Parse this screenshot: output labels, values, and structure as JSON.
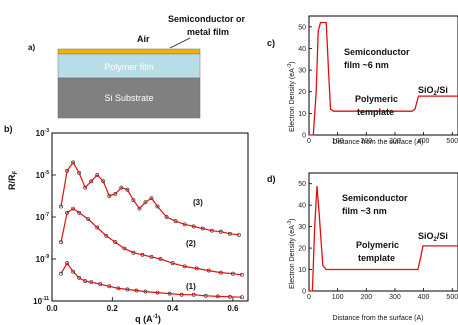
{
  "panel_a": {
    "letter": "a)",
    "air_label": "Air",
    "annotation_line1": "Semiconductor or",
    "annotation_line2": "metal film",
    "polymer_label": "Polymer film",
    "substrate_label": "Si Substrate",
    "colors": {
      "film": "#f0b400",
      "polymer": "#b7dde6",
      "substrate": "#808080"
    }
  },
  "panel_b": {
    "letter": "b)",
    "ylabel_main": "R/R",
    "ylabel_sub": "F",
    "xlabel": "q (A",
    "xlabel_sup": "-1",
    "xlabel_close": ")",
    "curve_labels": [
      "(3)",
      "(2)",
      "(1)"
    ]
  },
  "panel_c": {
    "letter": "c)",
    "ylabel": "Electron Density (eA",
    "ylabel_sup": "-3",
    "ylabel_close": ")",
    "xlabel": "Distance from the surface (A)",
    "ann_film_1": "Semiconductor",
    "ann_film_2": "film ~6 nm",
    "ann_poly_1": "Polymeric",
    "ann_poly_2": "template",
    "ann_sio2_main": "SiO",
    "ann_sio2_sub": "2",
    "ann_sio2_rest": "/Si"
  },
  "panel_d": {
    "letter": "d)",
    "ylabel": "Electron Density (eA",
    "ylabel_sup": "-3",
    "ylabel_close": ")",
    "xlabel": "Distance from the surface (A)",
    "ann_film_1": "Semiconductor",
    "ann_film_2": "film ~3 nm",
    "ann_poly_1": "Polymeric",
    "ann_poly_2": "template",
    "ann_sio2_main": "SiO",
    "ann_sio2_sub": "2",
    "ann_sio2_rest": "/Si"
  },
  "chart_data": [
    {
      "id": "reflectivity",
      "type": "scatter",
      "xlim": [
        0.0,
        0.65
      ],
      "ylim_log10": [
        -11,
        -3
      ],
      "log_y": true,
      "x_ticks": [
        "0.0",
        "0.2",
        "0.4",
        "0.6"
      ],
      "x_tick_values": [
        0.0,
        0.2,
        0.4,
        0.6
      ],
      "y_tick_labels": [
        "10",
        "10",
        "10",
        "10",
        "10"
      ],
      "y_tick_exps": [
        "-3",
        "-5",
        "-7",
        "-9",
        "-11"
      ],
      "y_tick_values": [
        -3,
        -5,
        -7,
        -9,
        -11
      ],
      "series": [
        {
          "name": "(3)",
          "points": [
            [
              0.03,
              -6.5
            ],
            [
              0.05,
              -4.8
            ],
            [
              0.07,
              -4.4
            ],
            [
              0.09,
              -4.9
            ],
            [
              0.11,
              -5.6
            ],
            [
              0.13,
              -5.3
            ],
            [
              0.15,
              -5.0
            ],
            [
              0.17,
              -5.3
            ],
            [
              0.19,
              -6.0
            ],
            [
              0.21,
              -5.9
            ],
            [
              0.23,
              -5.6
            ],
            [
              0.25,
              -5.7
            ],
            [
              0.27,
              -6.2
            ],
            [
              0.29,
              -6.6
            ],
            [
              0.31,
              -6.3
            ],
            [
              0.33,
              -6.1
            ],
            [
              0.35,
              -6.5
            ],
            [
              0.38,
              -7.0
            ],
            [
              0.41,
              -7.2
            ],
            [
              0.44,
              -7.35
            ],
            [
              0.47,
              -7.45
            ],
            [
              0.5,
              -7.55
            ],
            [
              0.53,
              -7.65
            ],
            [
              0.56,
              -7.7
            ],
            [
              0.59,
              -7.8
            ],
            [
              0.62,
              -7.85
            ]
          ]
        },
        {
          "name": "(2)",
          "points": [
            [
              0.03,
              -8.2
            ],
            [
              0.05,
              -6.8
            ],
            [
              0.07,
              -6.6
            ],
            [
              0.09,
              -6.8
            ],
            [
              0.12,
              -7.1
            ],
            [
              0.15,
              -7.5
            ],
            [
              0.18,
              -7.9
            ],
            [
              0.21,
              -8.2
            ],
            [
              0.24,
              -8.5
            ],
            [
              0.27,
              -8.7
            ],
            [
              0.3,
              -8.8
            ],
            [
              0.33,
              -8.9
            ],
            [
              0.36,
              -9.0
            ],
            [
              0.4,
              -9.2
            ],
            [
              0.44,
              -9.35
            ],
            [
              0.48,
              -9.45
            ],
            [
              0.52,
              -9.55
            ],
            [
              0.56,
              -9.65
            ],
            [
              0.6,
              -9.7
            ],
            [
              0.63,
              -9.75
            ]
          ]
        },
        {
          "name": "(1)",
          "points": [
            [
              0.03,
              -9.7
            ],
            [
              0.05,
              -9.2
            ],
            [
              0.07,
              -9.6
            ],
            [
              0.09,
              -9.9
            ],
            [
              0.11,
              -10.05
            ],
            [
              0.13,
              -10.1
            ],
            [
              0.16,
              -10.2
            ],
            [
              0.19,
              -10.3
            ],
            [
              0.22,
              -10.4
            ],
            [
              0.25,
              -10.45
            ],
            [
              0.28,
              -10.5
            ],
            [
              0.31,
              -10.55
            ],
            [
              0.35,
              -10.6
            ],
            [
              0.39,
              -10.65
            ],
            [
              0.43,
              -10.7
            ],
            [
              0.47,
              -10.7
            ],
            [
              0.51,
              -10.75
            ],
            [
              0.55,
              -10.78
            ],
            [
              0.59,
              -10.8
            ],
            [
              0.63,
              -10.82
            ]
          ]
        }
      ]
    },
    {
      "id": "density_c",
      "type": "line",
      "xlim": [
        0,
        520
      ],
      "ylim": [
        0,
        55
      ],
      "x_ticks": [
        0,
        100,
        200,
        300,
        400,
        500
      ],
      "y_ticks": [
        0,
        10,
        20,
        30,
        40,
        50
      ],
      "color": "#e01010",
      "points": [
        [
          0,
          0
        ],
        [
          15,
          0
        ],
        [
          25,
          20
        ],
        [
          32,
          48
        ],
        [
          40,
          52
        ],
        [
          60,
          52
        ],
        [
          68,
          30
        ],
        [
          75,
          12
        ],
        [
          85,
          11
        ],
        [
          360,
          11
        ],
        [
          370,
          12
        ],
        [
          382,
          18
        ],
        [
          520,
          18
        ]
      ]
    },
    {
      "id": "density_d",
      "type": "line",
      "xlim": [
        0,
        520
      ],
      "ylim": [
        0,
        55
      ],
      "x_ticks": [
        0,
        100,
        200,
        300,
        400,
        500
      ],
      "y_ticks": [
        0,
        10,
        20,
        30,
        40,
        50
      ],
      "color": "#e01010",
      "points": [
        [
          0,
          0
        ],
        [
          12,
          0
        ],
        [
          20,
          30
        ],
        [
          28,
          49
        ],
        [
          36,
          35
        ],
        [
          48,
          12
        ],
        [
          60,
          10
        ],
        [
          380,
          10
        ],
        [
          390,
          16
        ],
        [
          398,
          21
        ],
        [
          520,
          21
        ]
      ]
    }
  ]
}
